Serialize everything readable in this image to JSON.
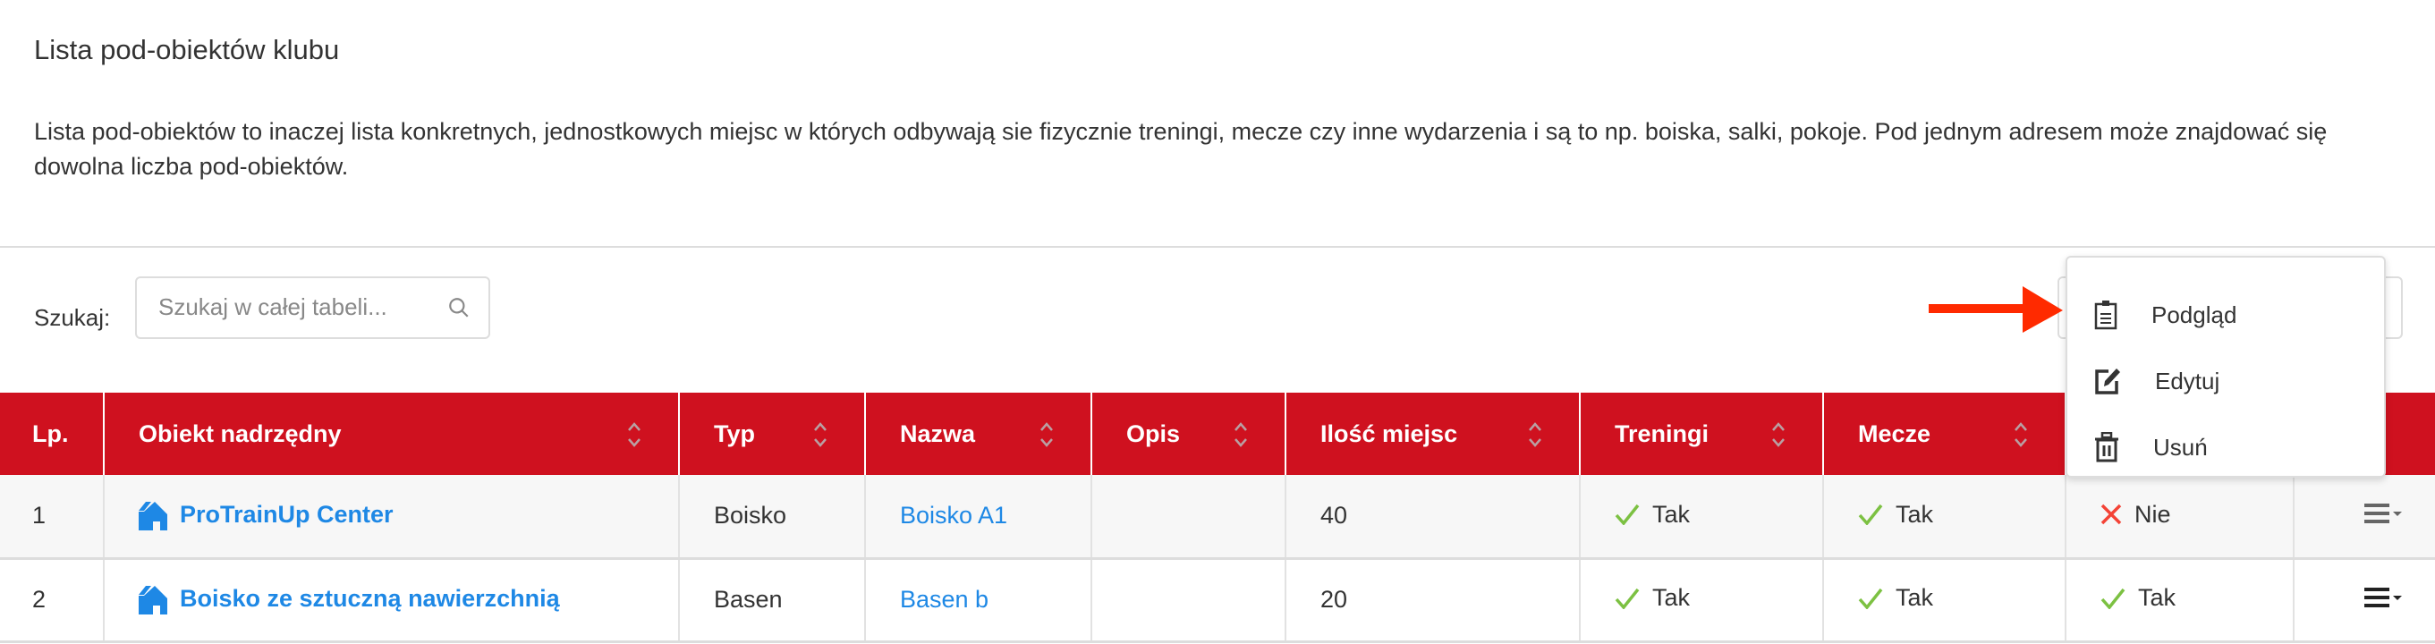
{
  "page": {
    "title": "Lista pod-obiektów klubu",
    "description": "Lista pod-obiektów to inaczej lista konkretnych, jednostkowych miejsc w których odbywają sie fizycznie treningi, mecze czy inne wydarzenia i są to np. boiska, salki, pokoje. Pod jednym adresem może znajdować się dowolna liczba pod-obiektów."
  },
  "search": {
    "label": "Szukaj:",
    "placeholder": "Szukaj w całej tabeli...",
    "value": ""
  },
  "table": {
    "columns": [
      "Lp.",
      "Obiekt nadrzędny",
      "Typ",
      "Nazwa",
      "Opis",
      "Ilość miejsc",
      "Treningi",
      "Mecze",
      "",
      ""
    ],
    "rows": [
      {
        "lp": "1",
        "parent": "ProTrainUp Center",
        "type": "Boisko",
        "name": "Boisko A1",
        "desc": "",
        "seats": "40",
        "trainings": "Tak",
        "matches": "Tak",
        "col9": "Nie",
        "col9_value": false
      },
      {
        "lp": "2",
        "parent": "Boisko ze sztuczną nawierzchnią",
        "type": "Basen",
        "name": "Basen b",
        "desc": "",
        "seats": "20",
        "trainings": "Tak",
        "matches": "Tak",
        "col9": "Tak",
        "col9_value": true
      }
    ]
  },
  "actions_menu": {
    "items": [
      {
        "label": "Podgląd",
        "icon": "clipboard-icon"
      },
      {
        "label": "Edytuj",
        "icon": "edit-icon"
      },
      {
        "label": "Usuń",
        "icon": "trash-icon"
      }
    ]
  },
  "colors": {
    "header": "#cf111f",
    "link": "#1e88e5",
    "yes": "#7cc142",
    "no": "#f44336",
    "annotation_arrow": "#ff2a00"
  }
}
